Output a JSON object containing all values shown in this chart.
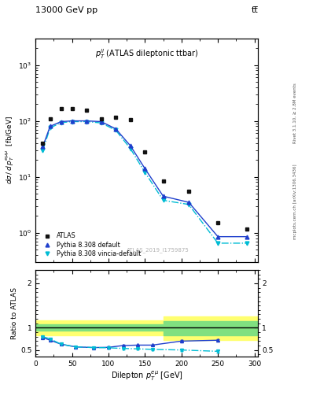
{
  "title_left": "13000 GeV pp",
  "title_right": "tt̅",
  "plot_label": "p$_T^{ll}$ (ATLAS dileptonic ttbar)",
  "watermark": "ATLAS_2019_I1759875",
  "right_label_top": "Rivet 3.1.10, ≥ 2.8M events",
  "right_label_bottom": "mcplots.cern.ch [arXiv:1306.3436]",
  "atlas_x": [
    10,
    20,
    35,
    50,
    70,
    90,
    110,
    130,
    150,
    175,
    210,
    250,
    290
  ],
  "atlas_y": [
    40,
    110,
    165,
    165,
    155,
    110,
    115,
    105,
    28,
    8.5,
    5.5,
    1.5,
    1.15
  ],
  "pythia_x": [
    10,
    20,
    35,
    50,
    70,
    90,
    110,
    130,
    150,
    175,
    210,
    250,
    290
  ],
  "pythia_default_y": [
    35,
    80,
    97,
    100,
    100,
    97,
    72,
    36,
    14,
    4.5,
    3.5,
    0.85,
    0.85
  ],
  "pythia_vincia_y": [
    30,
    75,
    93,
    97,
    97,
    92,
    68,
    32,
    12,
    3.8,
    3.2,
    0.65,
    0.65
  ],
  "ratio_x": [
    10,
    20,
    35,
    55,
    80,
    100,
    120,
    140,
    160,
    200,
    250
  ],
  "ratio_pythia_default": [
    0.78,
    0.72,
    0.63,
    0.57,
    0.555,
    0.56,
    0.6,
    0.61,
    0.61,
    0.7,
    0.72
  ],
  "ratio_pythia_vincia": [
    0.8,
    0.75,
    0.63,
    0.57,
    0.555,
    0.55,
    0.535,
    0.525,
    0.515,
    0.5,
    0.47
  ],
  "ratio_err_default": [
    0.015,
    0.015,
    0.015,
    0.015,
    0.015,
    0.015,
    0.015,
    0.015,
    0.015,
    0.025,
    0.025
  ],
  "ratio_err_vincia": [
    0.015,
    0.015,
    0.015,
    0.015,
    0.015,
    0.015,
    0.015,
    0.015,
    0.015,
    0.025,
    0.025
  ],
  "green_color": "#80e080",
  "yellow_color": "#ffff70",
  "atlas_color": "#111111",
  "pythia_default_color": "#1f3fcc",
  "pythia_vincia_color": "#00bcd4",
  "ylim_main_log": [
    0.3,
    3000
  ],
  "xlim": [
    0,
    305
  ],
  "ylim_ratio": [
    0.35,
    2.3
  ]
}
